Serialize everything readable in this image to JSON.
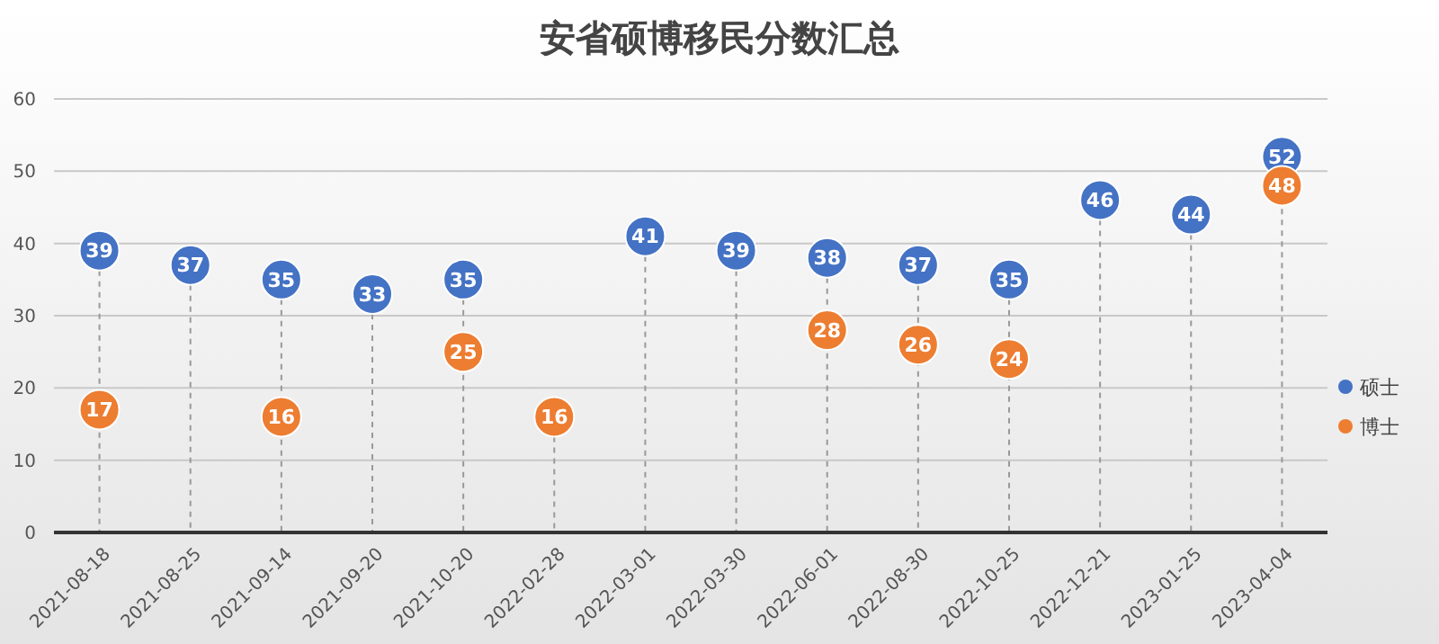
{
  "chart_data": {
    "type": "scatter",
    "title": "安省硕博移民分数汇总",
    "categories": [
      "2021-08-18",
      "2021-08-25",
      "2021-09-14",
      "2021-09-20",
      "2021-10-20",
      "2022-02-28",
      "2022-03-01",
      "2022-03-30",
      "2022-06-01",
      "2022-08-30",
      "2022-10-25",
      "2022-12-21",
      "2023-01-25",
      "2023-04-04"
    ],
    "series": [
      {
        "name": "硕士",
        "color": "#4472c4",
        "values": [
          39,
          37,
          35,
          33,
          35,
          null,
          41,
          39,
          38,
          37,
          35,
          46,
          44,
          52
        ]
      },
      {
        "name": "博士",
        "color": "#ed7d31",
        "values": [
          17,
          null,
          16,
          null,
          25,
          16,
          null,
          null,
          28,
          26,
          24,
          null,
          null,
          48
        ]
      }
    ],
    "ylim": [
      0,
      60
    ],
    "yticks": [
      0,
      10,
      20,
      30,
      40,
      50,
      60
    ],
    "grid": "y",
    "legend": "right",
    "marker": "circle",
    "data_labels": true
  }
}
